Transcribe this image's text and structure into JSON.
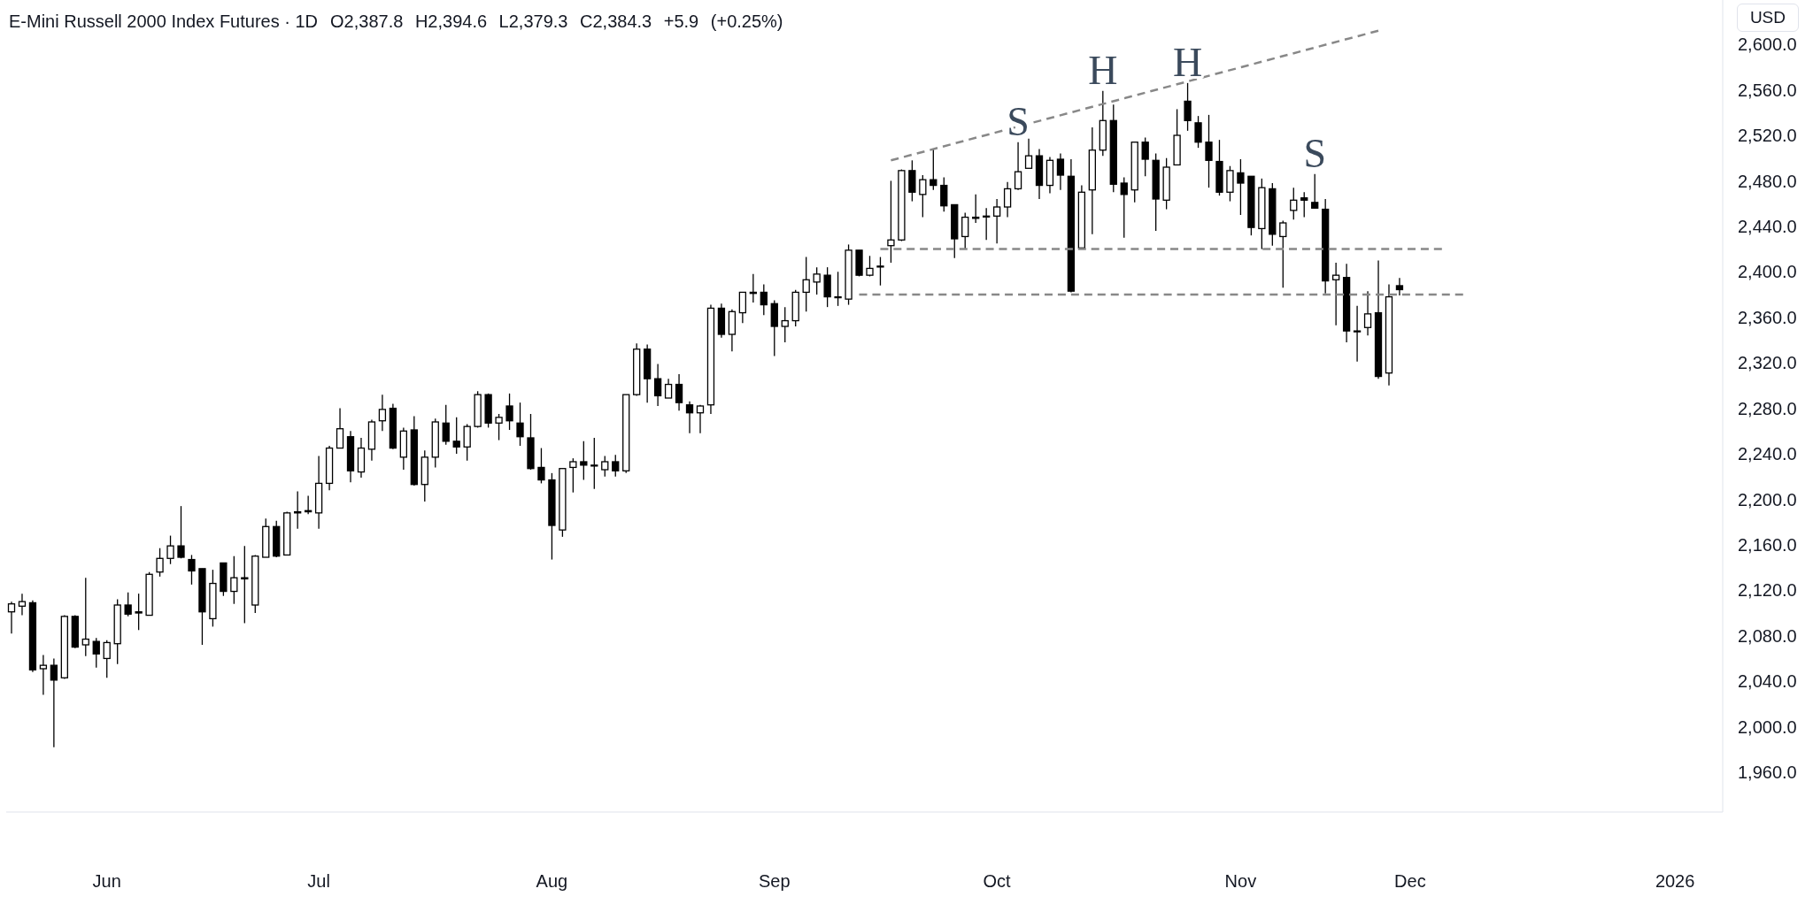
{
  "chart_data": {
    "type": "candlestick",
    "title": "E-Mini Russell 2000 Index Futures · 1D",
    "subtitle": "O2,387.8 H2,394.6 L2,379.3 C2,384.3 +5.9 (+0.25%)",
    "ylabel": "USD",
    "color": "#000000",
    "categories": [
      null,
      null,
      null,
      null,
      null,
      null,
      null,
      null,
      null,
      "Jun",
      null,
      null,
      null,
      null,
      null,
      null,
      null,
      null,
      null,
      null,
      null,
      null,
      null,
      null,
      null,
      null,
      null,
      null,
      null,
      "Jul",
      null,
      null,
      null,
      null,
      null,
      null,
      null,
      null,
      null,
      null,
      null,
      null,
      null,
      null,
      null,
      null,
      null,
      null,
      null,
      null,
      null,
      "Aug",
      null,
      null,
      null,
      null,
      null,
      null,
      null,
      null,
      null,
      null,
      null,
      null,
      null,
      null,
      null,
      null,
      null,
      null,
      null,
      null,
      "Sep",
      null,
      null,
      null,
      null,
      null,
      null,
      null,
      null,
      null,
      null,
      null,
      null,
      null,
      null,
      null,
      null,
      null,
      null,
      null,
      null,
      "Oct",
      null,
      null,
      null,
      null,
      null,
      null,
      null,
      null,
      null,
      null,
      null,
      null,
      null,
      null,
      null,
      null,
      null,
      null,
      null,
      null,
      null,
      null,
      "Nov",
      null,
      null,
      null,
      null,
      null,
      null,
      null,
      null,
      null,
      null,
      null,
      null,
      null,
      null,
      null,
      "Dec",
      null,
      null,
      null,
      null,
      null,
      null,
      null,
      null,
      null,
      null,
      null,
      null,
      null,
      null,
      null,
      null,
      null,
      null,
      null,
      null,
      null,
      null,
      null,
      null,
      "2026",
      null,
      null,
      null,
      null
    ],
    "ohlc": [
      [
        2101,
        2110,
        2082,
        2108
      ],
      [
        2106,
        2117,
        2098,
        2110
      ],
      [
        2109,
        2111,
        2048,
        2050
      ],
      [
        2051,
        2063,
        2028,
        2054
      ],
      [
        2054,
        2060,
        1982,
        2041
      ],
      [
        2043,
        2098,
        2042,
        2097
      ],
      [
        2097,
        2098,
        2069,
        2070
      ],
      [
        2072,
        2131,
        2062,
        2077
      ],
      [
        2075,
        2078,
        2052,
        2064
      ],
      [
        2060,
        2076,
        2043,
        2074
      ],
      [
        2073,
        2112,
        2055,
        2107
      ],
      [
        2107,
        2118,
        2097,
        2099
      ],
      [
        2101,
        2117,
        2085,
        2100
      ],
      [
        2098,
        2136,
        2098,
        2134
      ],
      [
        2136,
        2157,
        2132,
        2148
      ],
      [
        2148,
        2168,
        2143,
        2159
      ],
      [
        2159,
        2194,
        2148,
        2149
      ],
      [
        2147,
        2151,
        2125,
        2137
      ],
      [
        2139,
        2139,
        2072,
        2101
      ],
      [
        2095,
        2138,
        2088,
        2126
      ],
      [
        2144,
        2144,
        2115,
        2119
      ],
      [
        2119,
        2150,
        2108,
        2131
      ],
      [
        2130,
        2159,
        2091,
        2131
      ],
      [
        2107,
        2151,
        2100,
        2150
      ],
      [
        2149,
        2183,
        2149,
        2176
      ],
      [
        2176,
        2181,
        2149,
        2150
      ],
      [
        2151,
        2189,
        2151,
        2188
      ],
      [
        2188,
        2207,
        2174,
        2189
      ],
      [
        2190,
        2203,
        2187,
        2189
      ],
      [
        2188,
        2238,
        2174,
        2214
      ],
      [
        2214,
        2247,
        2208,
        2245
      ],
      [
        2245,
        2280,
        2245,
        2262
      ],
      [
        2255,
        2260,
        2215,
        2225
      ],
      [
        2224,
        2254,
        2219,
        2245
      ],
      [
        2244,
        2270,
        2234,
        2268
      ],
      [
        2269,
        2292,
        2260,
        2279
      ],
      [
        2280,
        2284,
        2244,
        2245
      ],
      [
        2237,
        2263,
        2226,
        2260
      ],
      [
        2261,
        2273,
        2212,
        2213
      ],
      [
        2213,
        2243,
        2198,
        2237
      ],
      [
        2237,
        2271,
        2228,
        2268
      ],
      [
        2267,
        2283,
        2248,
        2251
      ],
      [
        2251,
        2272,
        2240,
        2246
      ],
      [
        2246,
        2266,
        2234,
        2264
      ],
      [
        2264,
        2295,
        2263,
        2292
      ],
      [
        2292,
        2293,
        2263,
        2267
      ],
      [
        2267,
        2275,
        2252,
        2272
      ],
      [
        2282,
        2293,
        2261,
        2269
      ],
      [
        2267,
        2285,
        2247,
        2255
      ],
      [
        2254,
        2275,
        2226,
        2227
      ],
      [
        2228,
        2245,
        2214,
        2217
      ],
      [
        2217,
        2223,
        2147,
        2177
      ],
      [
        2173,
        2227,
        2167,
        2227
      ],
      [
        2228,
        2236,
        2206,
        2233
      ],
      [
        2233,
        2251,
        2217,
        2230
      ],
      [
        2230,
        2254,
        2209,
        2230
      ],
      [
        2226,
        2238,
        2220,
        2233
      ],
      [
        2233,
        2239,
        2220,
        2225
      ],
      [
        2225,
        2292,
        2223,
        2292
      ],
      [
        2292,
        2337,
        2291,
        2332
      ],
      [
        2332,
        2336,
        2285,
        2306
      ],
      [
        2306,
        2319,
        2282,
        2291
      ],
      [
        2289,
        2306,
        2289,
        2301
      ],
      [
        2301,
        2310,
        2278,
        2285
      ],
      [
        2283,
        2286,
        2258,
        2276
      ],
      [
        2276,
        2283,
        2258,
        2282
      ],
      [
        2283,
        2371,
        2275,
        2368
      ],
      [
        2368,
        2372,
        2342,
        2345
      ],
      [
        2345,
        2367,
        2330,
        2365
      ],
      [
        2364,
        2382,
        2355,
        2382
      ],
      [
        2381,
        2398,
        2373,
        2382
      ],
      [
        2382,
        2389,
        2362,
        2371
      ],
      [
        2372,
        2375,
        2326,
        2352
      ],
      [
        2352,
        2369,
        2338,
        2357
      ],
      [
        2357,
        2384,
        2352,
        2382
      ],
      [
        2382,
        2413,
        2365,
        2393
      ],
      [
        2391,
        2404,
        2380,
        2398
      ],
      [
        2397,
        2404,
        2369,
        2378
      ],
      [
        2378,
        2400,
        2370,
        2378
      ],
      [
        2376,
        2424,
        2371,
        2419
      ],
      [
        2419,
        2419,
        2396,
        2397
      ],
      [
        2397,
        2414,
        2396,
        2403
      ],
      [
        2405,
        2413,
        2388,
        2405
      ],
      [
        2423,
        2480,
        2408,
        2428
      ],
      [
        2428,
        2490,
        2427,
        2489
      ],
      [
        2489,
        2498,
        2462,
        2470
      ],
      [
        2468,
        2485,
        2448,
        2481
      ],
      [
        2481,
        2508,
        2472,
        2476
      ],
      [
        2476,
        2483,
        2453,
        2458
      ],
      [
        2459,
        2459,
        2412,
        2429
      ],
      [
        2431,
        2452,
        2420,
        2448
      ],
      [
        2447,
        2468,
        2443,
        2448
      ],
      [
        2449,
        2456,
        2428,
        2449
      ],
      [
        2449,
        2464,
        2425,
        2457
      ],
      [
        2457,
        2479,
        2448,
        2473
      ],
      [
        2473,
        2514,
        2472,
        2488
      ],
      [
        2491,
        2517,
        2491,
        2502
      ],
      [
        2502,
        2508,
        2464,
        2476
      ],
      [
        2476,
        2501,
        2469,
        2498
      ],
      [
        2499,
        2504,
        2472,
        2485
      ],
      [
        2484,
        2499,
        2382,
        2383
      ],
      [
        2421,
        2476,
        2420,
        2470
      ],
      [
        2472,
        2527,
        2433,
        2507
      ],
      [
        2507,
        2559,
        2502,
        2533
      ],
      [
        2533,
        2547,
        2470,
        2477
      ],
      [
        2478,
        2483,
        2430,
        2468
      ],
      [
        2472,
        2514,
        2461,
        2514
      ],
      [
        2514,
        2518,
        2484,
        2499
      ],
      [
        2498,
        2504,
        2436,
        2464
      ],
      [
        2463,
        2500,
        2455,
        2492
      ],
      [
        2494,
        2543,
        2494,
        2520
      ],
      [
        2550,
        2566,
        2524,
        2533
      ],
      [
        2531,
        2537,
        2509,
        2514
      ],
      [
        2514,
        2538,
        2474,
        2498
      ],
      [
        2497,
        2516,
        2467,
        2470
      ],
      [
        2470,
        2493,
        2462,
        2489
      ],
      [
        2487,
        2499,
        2450,
        2478
      ],
      [
        2484,
        2484,
        2432,
        2439
      ],
      [
        2438,
        2482,
        2420,
        2474
      ],
      [
        2473,
        2478,
        2423,
        2433
      ],
      [
        2431,
        2445,
        2386,
        2443
      ],
      [
        2454,
        2474,
        2446,
        2463
      ],
      [
        2465,
        2470,
        2448,
        2463
      ],
      [
        2461,
        2486,
        2456,
        2456
      ],
      [
        2455,
        2464,
        2381,
        2392
      ],
      [
        2393,
        2408,
        2353,
        2397
      ],
      [
        2395,
        2407,
        2338,
        2348
      ],
      [
        2348,
        2370,
        2321,
        2348
      ],
      [
        2351,
        2383,
        2344,
        2363
      ],
      [
        2364,
        2410,
        2306,
        2308
      ],
      [
        2311,
        2389,
        2300,
        2378
      ],
      [
        2387.8,
        2394.6,
        2379.3,
        2384.3
      ],
      null,
      null,
      null,
      null,
      null,
      null,
      null,
      null,
      null,
      null,
      null,
      null,
      null,
      null,
      null,
      null,
      null,
      null,
      null,
      null,
      null,
      null,
      null,
      null,
      null,
      null,
      null,
      null,
      null,
      null
    ],
    "value_labels": [
      null,
      null,
      null,
      null,
      null,
      null,
      null,
      null,
      null,
      null,
      null,
      null,
      null,
      null,
      null,
      null,
      null,
      null,
      null,
      null,
      null,
      null,
      null,
      null,
      null,
      null,
      null,
      null,
      null,
      null,
      null,
      null,
      null,
      null,
      null,
      null,
      null,
      null,
      null,
      null,
      null,
      null,
      null,
      null,
      null,
      null,
      null,
      null,
      null,
      null,
      null,
      null,
      null,
      null,
      null,
      null,
      null,
      null,
      null,
      null,
      null,
      null,
      null,
      null,
      null,
      null,
      null,
      null,
      null,
      null,
      null,
      null,
      null,
      null,
      null,
      null,
      null,
      null,
      null,
      null,
      null,
      null,
      null,
      null,
      null,
      null,
      null,
      null,
      null,
      null,
      null,
      null,
      null,
      null,
      null,
      "S",
      null,
      null,
      null,
      null,
      null,
      null,
      null,
      "H",
      null,
      null,
      null,
      null,
      null,
      null,
      null,
      "H",
      null,
      null,
      null,
      null,
      null,
      null,
      null,
      null,
      null,
      null,
      null,
      "S",
      null,
      null,
      null,
      null,
      null,
      null,
      null,
      null,
      null,
      null,
      null,
      null,
      null,
      null,
      null,
      null,
      null,
      null,
      null,
      null,
      null,
      null,
      null,
      null,
      null,
      null,
      null,
      null,
      null,
      null,
      null,
      null,
      null,
      null,
      null,
      null,
      null,
      null
    ],
    "series": [
      {
        "type": "line",
        "color": "#888888",
        "line_style": "dashed",
        "values": [
          null,
          null,
          null,
          null,
          null,
          null,
          null,
          null,
          null,
          null,
          null,
          null,
          null,
          null,
          null,
          null,
          null,
          null,
          null,
          null,
          null,
          null,
          null,
          null,
          null,
          null,
          null,
          null,
          null,
          null,
          null,
          null,
          null,
          null,
          null,
          null,
          null,
          null,
          null,
          null,
          null,
          null,
          null,
          null,
          null,
          null,
          null,
          null,
          null,
          null,
          null,
          null,
          null,
          null,
          null,
          null,
          null,
          null,
          null,
          null,
          null,
          null,
          null,
          null,
          null,
          null,
          null,
          null,
          null,
          null,
          null,
          null,
          null,
          null,
          null,
          null,
          null,
          null,
          null,
          null,
          null,
          null,
          null,
          2498,
          null,
          null,
          null,
          null,
          null,
          null,
          null,
          null,
          null,
          null,
          null,
          null,
          null,
          null,
          null,
          null,
          null,
          null,
          null,
          null,
          null,
          null,
          null,
          null,
          null,
          null,
          null,
          null,
          null,
          null,
          null,
          null,
          null,
          null,
          null,
          null,
          null,
          null,
          null,
          null,
          null,
          null,
          null,
          null,
          null,
          2612,
          null,
          null,
          null,
          null,
          null,
          null,
          null,
          null,
          null,
          null,
          null,
          null,
          null,
          null,
          null,
          null,
          null,
          null,
          null,
          null,
          null,
          null,
          null,
          null,
          null,
          null,
          null,
          null,
          null,
          null,
          null,
          null
        ]
      },
      {
        "type": "line",
        "color": "#888888",
        "line_style": "dashed",
        "values": [
          null,
          null,
          null,
          null,
          null,
          null,
          null,
          null,
          null,
          null,
          null,
          null,
          null,
          null,
          null,
          null,
          null,
          null,
          null,
          null,
          null,
          null,
          null,
          null,
          null,
          null,
          null,
          null,
          null,
          null,
          null,
          null,
          null,
          null,
          null,
          null,
          null,
          null,
          null,
          null,
          null,
          null,
          null,
          null,
          null,
          null,
          null,
          null,
          null,
          null,
          null,
          null,
          null,
          null,
          null,
          null,
          null,
          null,
          null,
          null,
          null,
          null,
          null,
          null,
          null,
          null,
          null,
          null,
          null,
          null,
          null,
          null,
          null,
          null,
          null,
          null,
          null,
          null,
          null,
          null,
          null,
          null,
          2420,
          null,
          null,
          null,
          null,
          null,
          null,
          null,
          null,
          null,
          null,
          null,
          null,
          null,
          null,
          null,
          null,
          null,
          null,
          null,
          null,
          null,
          null,
          null,
          null,
          null,
          null,
          null,
          null,
          null,
          null,
          null,
          null,
          null,
          null,
          null,
          null,
          null,
          null,
          null,
          null,
          null,
          null,
          null,
          null,
          null,
          null,
          null,
          null,
          null,
          null,
          null,
          null,
          2420,
          null,
          null,
          null,
          null,
          null,
          null,
          null,
          null,
          null,
          null,
          null,
          null,
          null,
          null,
          null,
          null,
          null,
          null,
          null,
          null,
          null,
          null,
          null,
          null,
          null,
          null
        ]
      },
      {
        "type": "line",
        "color": "#888888",
        "line_style": "dashed",
        "values": [
          null,
          null,
          null,
          null,
          null,
          null,
          null,
          null,
          null,
          null,
          null,
          null,
          null,
          null,
          null,
          null,
          null,
          null,
          null,
          null,
          null,
          null,
          null,
          null,
          null,
          null,
          null,
          null,
          null,
          null,
          null,
          null,
          null,
          null,
          null,
          null,
          null,
          null,
          null,
          null,
          null,
          null,
          null,
          null,
          null,
          null,
          null,
          null,
          null,
          null,
          null,
          null,
          null,
          null,
          null,
          null,
          null,
          null,
          null,
          null,
          null,
          null,
          null,
          null,
          null,
          null,
          null,
          null,
          null,
          null,
          null,
          null,
          null,
          null,
          null,
          null,
          null,
          null,
          null,
          null,
          2380,
          null,
          null,
          null,
          null,
          null,
          null,
          null,
          null,
          null,
          null,
          null,
          null,
          null,
          null,
          null,
          null,
          null,
          null,
          null,
          null,
          null,
          null,
          null,
          null,
          null,
          null,
          null,
          null,
          null,
          null,
          null,
          null,
          null,
          null,
          null,
          null,
          null,
          null,
          null,
          null,
          null,
          null,
          null,
          null,
          null,
          null,
          null,
          null,
          null,
          null,
          null,
          null,
          null,
          null,
          null,
          null,
          2380,
          null,
          null,
          null,
          null,
          null,
          null,
          null,
          null,
          null,
          null,
          null,
          null,
          null,
          null,
          null,
          null,
          null,
          null,
          null,
          null,
          null,
          null,
          null,
          null
        ]
      }
    ],
    "ylim": [
      1925,
      2639
    ],
    "yticks": [
      {
        "value": 1960,
        "label": "1,960.0"
      },
      {
        "value": 2000,
        "label": "2,000.0"
      },
      {
        "value": 2040,
        "label": "2,040.0"
      },
      {
        "value": 2080,
        "label": "2,080.0"
      },
      {
        "value": 2120,
        "label": "2,120.0"
      },
      {
        "value": 2160,
        "label": "2,160.0"
      },
      {
        "value": 2200,
        "label": "2,200.0"
      },
      {
        "value": 2240,
        "label": "2,240.0"
      },
      {
        "value": 2280,
        "label": "2,280.0"
      },
      {
        "value": 2320,
        "label": "2,320.0"
      },
      {
        "value": 2360,
        "label": "2,360.0"
      },
      {
        "value": 2400,
        "label": "2,400.0"
      },
      {
        "value": 2440,
        "label": "2,440.0"
      },
      {
        "value": 2480,
        "label": "2,480.0"
      },
      {
        "value": 2520,
        "label": "2,520.0"
      },
      {
        "value": 2560,
        "label": "2,560.0"
      },
      {
        "value": 2600,
        "label": "2,600.0"
      }
    ]
  }
}
